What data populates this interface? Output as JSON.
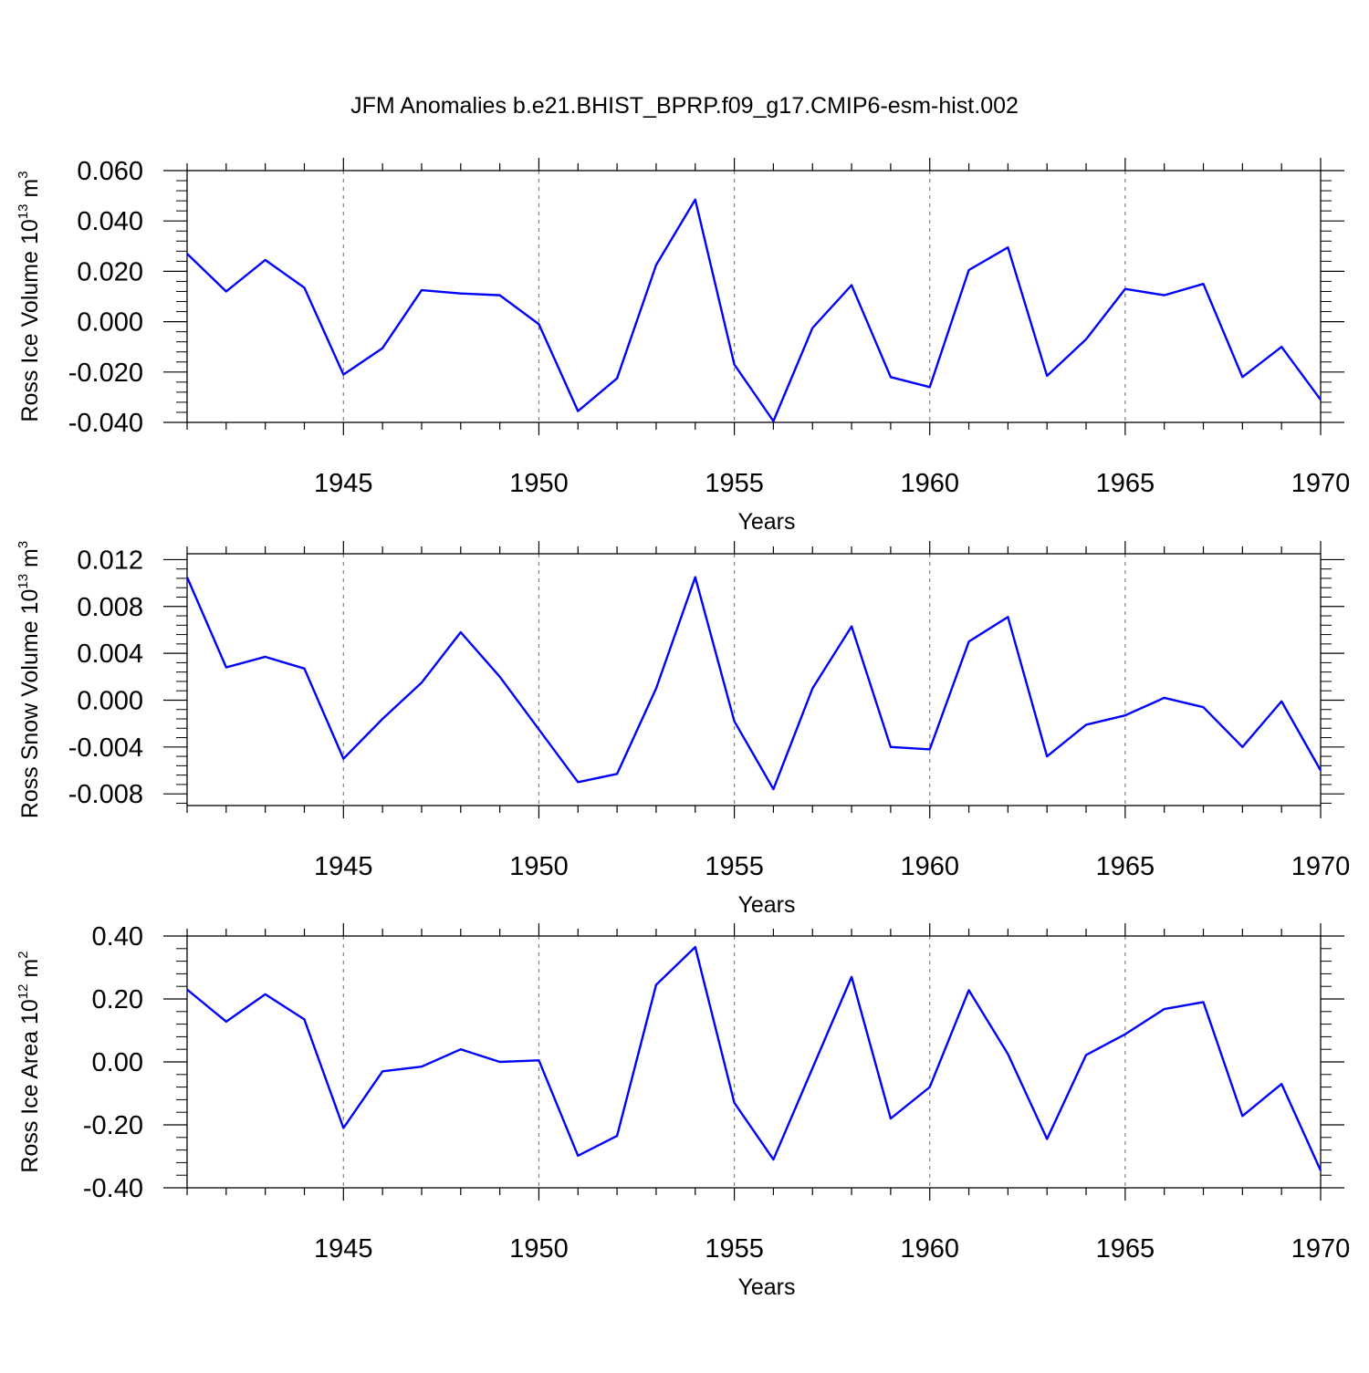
{
  "figure_title": "JFM Anomalies b.e21.BHIST_BPRP.f09_g17.CMIP6-esm-hist.002",
  "colors": {
    "line": "#0000ff",
    "axis": "#000000",
    "grid": "#808080",
    "background": "#ffffff"
  },
  "chart_data": [
    {
      "type": "line",
      "ylabel": "Ross Ice Volume 10",
      "ylabel_exponent": "13",
      "ylabel_unit": "m",
      "ylabel_unit_exponent": "3",
      "xlabel": "Years",
      "xlim": [
        1941,
        1970
      ],
      "ylim": [
        -0.04,
        0.06
      ],
      "xticks": [
        1945,
        1950,
        1955,
        1960,
        1965,
        1970
      ],
      "xtick_labels": [
        "1945",
        "1950",
        "1955",
        "1960",
        "1965",
        "1970"
      ],
      "yticks": [
        -0.04,
        -0.02,
        0,
        0.02,
        0.04,
        0.06
      ],
      "ytick_labels": [
        "-0.040",
        "-0.020",
        "0.000",
        "0.020",
        "0.040",
        "0.060"
      ],
      "grid": "vertical dashed at major x ticks",
      "x": [
        1941,
        1942,
        1943,
        1944,
        1945,
        1946,
        1947,
        1948,
        1949,
        1950,
        1951,
        1952,
        1953,
        1954,
        1955,
        1956,
        1957,
        1958,
        1959,
        1960,
        1961,
        1962,
        1963,
        1964,
        1965,
        1966,
        1967,
        1968,
        1969,
        1970
      ],
      "series": [
        {
          "values": [
            0.027,
            0.012,
            0.0245,
            0.0135,
            -0.021,
            -0.0105,
            0.0125,
            0.0112,
            0.0105,
            -0.001,
            -0.0355,
            -0.0225,
            0.0225,
            0.0485,
            -0.017,
            -0.0395,
            -0.0025,
            0.0145,
            -0.022,
            -0.026,
            0.0205,
            0.0295,
            -0.0215,
            -0.007,
            0.013,
            0.0105,
            0.015,
            -0.022,
            -0.01,
            -0.031
          ]
        }
      ]
    },
    {
      "type": "line",
      "ylabel": "Ross Snow Volume 10",
      "ylabel_exponent": "13",
      "ylabel_unit": "m",
      "ylabel_unit_exponent": "3",
      "xlabel": "Years",
      "xlim": [
        1941,
        1970
      ],
      "ylim": [
        -0.009,
        0.0125
      ],
      "xticks": [
        1945,
        1950,
        1955,
        1960,
        1965,
        1970
      ],
      "xtick_labels": [
        "1945",
        "1950",
        "1955",
        "1960",
        "1965",
        "1970"
      ],
      "yticks": [
        -0.008,
        -0.004,
        0,
        0.004,
        0.008,
        0.012
      ],
      "ytick_labels": [
        "-0.008",
        "-0.004",
        "0.000",
        "0.004",
        "0.008",
        "0.012"
      ],
      "grid": "vertical dashed at major x ticks",
      "x": [
        1941,
        1942,
        1943,
        1944,
        1945,
        1946,
        1947,
        1948,
        1949,
        1950,
        1951,
        1952,
        1953,
        1954,
        1955,
        1956,
        1957,
        1958,
        1959,
        1960,
        1961,
        1962,
        1963,
        1964,
        1965,
        1966,
        1967,
        1968,
        1969,
        1970
      ],
      "series": [
        {
          "values": [
            0.0105,
            0.0028,
            0.0037,
            0.0027,
            -0.005,
            -0.0016,
            0.0015,
            0.0058,
            0.002,
            -0.0025,
            -0.007,
            -0.0063,
            0.001,
            0.0105,
            -0.0018,
            -0.0076,
            0.001,
            0.0063,
            -0.004,
            -0.0042,
            0.005,
            0.0071,
            -0.0048,
            -0.0021,
            -0.0013,
            0.0002,
            -0.0006,
            -0.004,
            -0.0001,
            -0.006
          ]
        }
      ]
    },
    {
      "type": "line",
      "ylabel": "Ross Ice Area 10",
      "ylabel_exponent": "12",
      "ylabel_unit": "m",
      "ylabel_unit_exponent": "2",
      "xlabel": "Years",
      "xlim": [
        1941,
        1970
      ],
      "ylim": [
        -0.4,
        0.4
      ],
      "xticks": [
        1945,
        1950,
        1955,
        1960,
        1965,
        1970
      ],
      "xtick_labels": [
        "1945",
        "1950",
        "1955",
        "1960",
        "1965",
        "1970"
      ],
      "yticks": [
        -0.4,
        -0.2,
        0,
        0.2,
        0.4
      ],
      "ytick_labels": [
        "-0.40",
        "-0.20",
        "0.00",
        "0.20",
        "0.40"
      ],
      "grid": "vertical dashed at major x ticks",
      "x": [
        1941,
        1942,
        1943,
        1944,
        1945,
        1946,
        1947,
        1948,
        1949,
        1950,
        1951,
        1952,
        1953,
        1954,
        1955,
        1956,
        1957,
        1958,
        1959,
        1960,
        1961,
        1962,
        1963,
        1964,
        1965,
        1966,
        1967,
        1968,
        1969,
        1970
      ],
      "series": [
        {
          "values": [
            0.23,
            0.128,
            0.215,
            0.135,
            -0.21,
            -0.03,
            -0.015,
            0.04,
            0.0,
            0.005,
            -0.298,
            -0.235,
            0.245,
            0.365,
            -0.13,
            -0.31,
            -0.02,
            0.27,
            -0.18,
            -0.08,
            0.228,
            0.025,
            -0.245,
            0.022,
            0.088,
            0.168,
            0.19,
            -0.172,
            -0.07,
            -0.345
          ]
        }
      ]
    }
  ]
}
